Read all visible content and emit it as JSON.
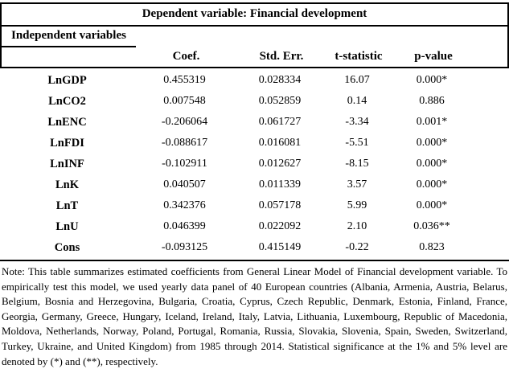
{
  "table": {
    "title": "Dependent variable: Financial development",
    "row_header_label": "Independent variables",
    "columns": [
      "Coef.",
      "Std. Err.",
      "t-statistic",
      "p-value"
    ],
    "rows": [
      {
        "variable": "LnGDP",
        "coef": "0.455319",
        "std_err": "0.028334",
        "t_statistic": "16.07",
        "p_value": "0.000*"
      },
      {
        "variable": "LnCO2",
        "coef": "0.007548",
        "std_err": "0.052859",
        "t_statistic": "0.14",
        "p_value": "0.886"
      },
      {
        "variable": "LnENC",
        "coef": "-0.206064",
        "std_err": "0.061727",
        "t_statistic": "-3.34",
        "p_value": "0.001*"
      },
      {
        "variable": "LnFDI",
        "coef": "-0.088617",
        "std_err": "0.016081",
        "t_statistic": "-5.51",
        "p_value": "0.000*"
      },
      {
        "variable": "LnINF",
        "coef": "-0.102911",
        "std_err": "0.012627",
        "t_statistic": "-8.15",
        "p_value": "0.000*"
      },
      {
        "variable": "LnK",
        "coef": "0.040507",
        "std_err": "0.011339",
        "t_statistic": "3.57",
        "p_value": "0.000*"
      },
      {
        "variable": "LnT",
        "coef": "0.342376",
        "std_err": "0.057178",
        "t_statistic": "5.99",
        "p_value": "0.000*"
      },
      {
        "variable": "LnU",
        "coef": "0.046399",
        "std_err": "0.022092",
        "t_statistic": "2.10",
        "p_value": "0.036**"
      },
      {
        "variable": "Cons",
        "coef": "-0.093125",
        "std_err": "0.415149",
        "t_statistic": "-0.22",
        "p_value": "0.823"
      }
    ]
  },
  "note": "Note: This table summarizes estimated coefficients from General Linear Model of Financial development variable. To empirically test this model, we used yearly data panel of 40 European countries (Albania, Armenia, Austria, Belarus, Belgium, Bosnia and Herzegovina, Bulgaria, Croatia, Cyprus, Czech Republic, Denmark, Estonia, Finland, France, Georgia, Germany, Greece, Hungary, Iceland, Ireland, Italy, Latvia, Lithuania, Luxembourg, Republic of Macedonia, Moldova, Netherlands, Norway, Poland, Portugal, Romania, Russia, Slovakia, Slovenia, Spain, Sweden, Switzerland, Turkey, Ukraine, and United Kingdom) from 1985 through 2014. Statistical significance at the 1% and 5% level are denoted by (*) and (**), respectively.",
  "colors": {
    "text": "#000000",
    "rule": "#000000",
    "background": "#ffffff"
  }
}
